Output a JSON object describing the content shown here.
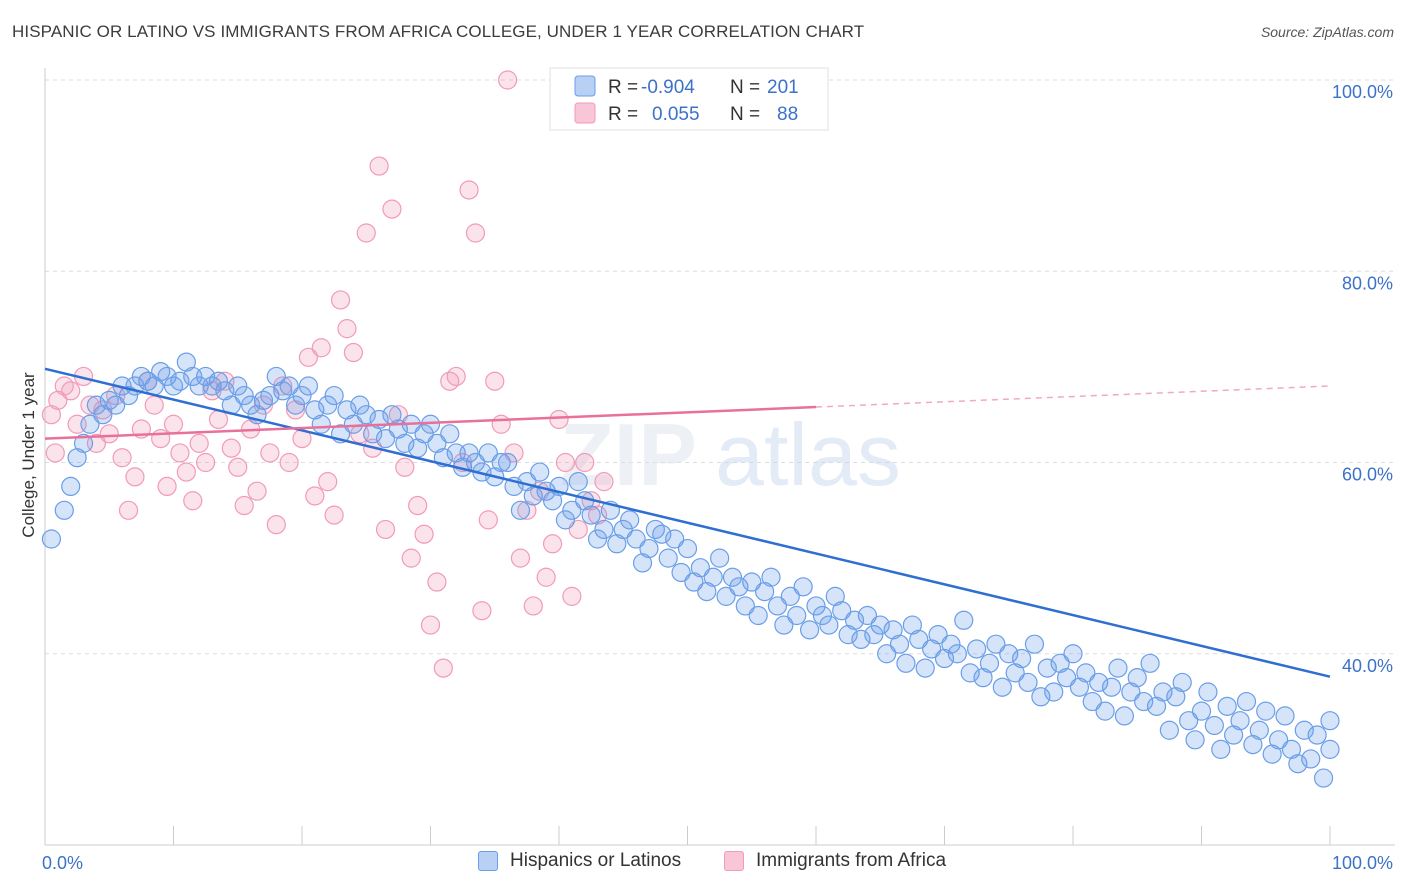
{
  "header": {
    "title": "HISPANIC OR LATINO VS IMMIGRANTS FROM AFRICA COLLEGE, UNDER 1 YEAR CORRELATION CHART",
    "source": "Source: ZipAtlas.com"
  },
  "watermark": {
    "part1": "ZIP",
    "part2": "atlas"
  },
  "chart_data": {
    "type": "scatter",
    "title": "HISPANIC OR LATINO VS IMMIGRANTS FROM AFRICA COLLEGE, UNDER 1 YEAR CORRELATION CHART",
    "xlabel": "",
    "ylabel": "College, Under 1 year",
    "xlim": [
      0,
      100
    ],
    "ylim": [
      20,
      100
    ],
    "x_tick_labels": [
      "0.0%",
      "100.0%"
    ],
    "y_ticks": [
      40,
      60,
      80,
      100
    ],
    "y_tick_labels": [
      "40.0%",
      "60.0%",
      "80.0%",
      "100.0%"
    ],
    "grid": true,
    "legend_position": "top-center",
    "colors": {
      "series1": "#6a9ee8",
      "series1_line": "#2f6fd1",
      "series2": "#f29ab8",
      "series2_line": "#e8709a"
    },
    "stats": [
      {
        "r_label": "R =",
        "r_value": "-0.904",
        "n_label": "N =",
        "n_value": "201"
      },
      {
        "r_label": "R =",
        "r_value": "0.055",
        "n_label": "N =",
        "n_value": "88"
      }
    ],
    "series": [
      {
        "name": "Hispanics or Latinos",
        "trend": {
          "x": [
            0,
            100
          ],
          "y": [
            69.8,
            37.6
          ]
        },
        "points": [
          [
            0.5,
            52
          ],
          [
            1.5,
            55
          ],
          [
            2,
            57.5
          ],
          [
            2.5,
            60.5
          ],
          [
            3,
            62
          ],
          [
            3.5,
            64
          ],
          [
            4,
            66
          ],
          [
            4.5,
            65
          ],
          [
            5,
            66.5
          ],
          [
            5.5,
            66
          ],
          [
            6,
            68
          ],
          [
            6.5,
            67
          ],
          [
            7,
            68
          ],
          [
            7.5,
            69
          ],
          [
            8,
            68.5
          ],
          [
            8.5,
            68
          ],
          [
            9,
            69.5
          ],
          [
            9.5,
            69
          ],
          [
            10,
            68
          ],
          [
            10.5,
            68.5
          ],
          [
            11,
            70.5
          ],
          [
            11.5,
            69
          ],
          [
            12,
            68
          ],
          [
            12.5,
            69
          ],
          [
            13,
            68
          ],
          [
            13.5,
            68.5
          ],
          [
            14,
            67.5
          ],
          [
            14.5,
            66
          ],
          [
            15,
            68
          ],
          [
            15.5,
            67
          ],
          [
            16,
            66
          ],
          [
            16.5,
            65
          ],
          [
            17,
            66.5
          ],
          [
            17.5,
            67
          ],
          [
            18,
            69
          ],
          [
            18.5,
            67.5
          ],
          [
            19,
            68
          ],
          [
            19.5,
            66
          ],
          [
            20,
            67
          ],
          [
            20.5,
            68
          ],
          [
            21,
            65.5
          ],
          [
            21.5,
            64
          ],
          [
            22,
            66
          ],
          [
            22.5,
            67
          ],
          [
            23,
            63
          ],
          [
            23.5,
            65.5
          ],
          [
            24,
            64
          ],
          [
            24.5,
            66
          ],
          [
            25,
            65
          ],
          [
            25.5,
            63
          ],
          [
            26,
            64.5
          ],
          [
            26.5,
            62.5
          ],
          [
            27,
            65
          ],
          [
            27.5,
            63.5
          ],
          [
            28,
            62
          ],
          [
            28.5,
            64
          ],
          [
            29,
            61.5
          ],
          [
            29.5,
            63
          ],
          [
            30,
            64
          ],
          [
            30.5,
            62
          ],
          [
            31,
            60.5
          ],
          [
            31.5,
            63
          ],
          [
            32,
            61
          ],
          [
            32.5,
            59.5
          ],
          [
            33,
            61
          ],
          [
            33.5,
            60
          ],
          [
            34,
            59
          ],
          [
            34.5,
            61
          ],
          [
            35,
            58.5
          ],
          [
            35.5,
            60
          ],
          [
            36,
            60
          ],
          [
            36.5,
            57.5
          ],
          [
            37,
            55
          ],
          [
            37.5,
            58
          ],
          [
            38,
            56.5
          ],
          [
            38.5,
            59
          ],
          [
            39,
            57
          ],
          [
            39.5,
            56
          ],
          [
            40,
            57.5
          ],
          [
            40.5,
            54
          ],
          [
            41,
            55
          ],
          [
            41.5,
            58
          ],
          [
            42,
            56
          ],
          [
            42.5,
            54.5
          ],
          [
            43,
            52
          ],
          [
            43.5,
            53
          ],
          [
            44,
            55
          ],
          [
            44.5,
            51.5
          ],
          [
            45,
            53
          ],
          [
            45.5,
            54
          ],
          [
            46,
            52
          ],
          [
            46.5,
            49.5
          ],
          [
            47,
            51
          ],
          [
            47.5,
            53
          ],
          [
            48,
            52.5
          ],
          [
            48.5,
            50
          ],
          [
            49,
            52
          ],
          [
            49.5,
            48.5
          ],
          [
            50,
            51
          ],
          [
            50.5,
            47.5
          ],
          [
            51,
            49
          ],
          [
            51.5,
            46.5
          ],
          [
            52,
            48
          ],
          [
            52.5,
            50
          ],
          [
            53,
            46
          ],
          [
            53.5,
            48
          ],
          [
            54,
            47
          ],
          [
            54.5,
            45
          ],
          [
            55,
            47.5
          ],
          [
            55.5,
            44
          ],
          [
            56,
            46.5
          ],
          [
            56.5,
            48
          ],
          [
            57,
            45
          ],
          [
            57.5,
            43
          ],
          [
            58,
            46
          ],
          [
            58.5,
            44
          ],
          [
            59,
            47
          ],
          [
            59.5,
            42.5
          ],
          [
            60,
            45
          ],
          [
            60.5,
            44
          ],
          [
            61,
            43
          ],
          [
            61.5,
            46
          ],
          [
            62,
            44.5
          ],
          [
            62.5,
            42
          ],
          [
            63,
            43.5
          ],
          [
            63.5,
            41.5
          ],
          [
            64,
            44
          ],
          [
            64.5,
            42
          ],
          [
            65,
            43
          ],
          [
            65.5,
            40
          ],
          [
            66,
            42.5
          ],
          [
            66.5,
            41
          ],
          [
            67,
            39
          ],
          [
            67.5,
            43
          ],
          [
            68,
            41.5
          ],
          [
            68.5,
            38.5
          ],
          [
            69,
            40.5
          ],
          [
            69.5,
            42
          ],
          [
            70,
            39.5
          ],
          [
            70.5,
            41
          ],
          [
            71,
            40
          ],
          [
            71.5,
            43.5
          ],
          [
            72,
            38
          ],
          [
            72.5,
            40.5
          ],
          [
            73,
            37.5
          ],
          [
            73.5,
            39
          ],
          [
            74,
            41
          ],
          [
            74.5,
            36.5
          ],
          [
            75,
            40
          ],
          [
            75.5,
            38
          ],
          [
            76,
            39.5
          ],
          [
            76.5,
            37
          ],
          [
            77,
            41
          ],
          [
            77.5,
            35.5
          ],
          [
            78,
            38.5
          ],
          [
            78.5,
            36
          ],
          [
            79,
            39
          ],
          [
            79.5,
            37.5
          ],
          [
            80,
            40
          ],
          [
            80.5,
            36.5
          ],
          [
            81,
            38
          ],
          [
            81.5,
            35
          ],
          [
            82,
            37
          ],
          [
            82.5,
            34
          ],
          [
            83,
            36.5
          ],
          [
            83.5,
            38.5
          ],
          [
            84,
            33.5
          ],
          [
            84.5,
            36
          ],
          [
            85,
            37.5
          ],
          [
            85.5,
            35
          ],
          [
            86,
            39
          ],
          [
            86.5,
            34.5
          ],
          [
            87,
            36
          ],
          [
            87.5,
            32
          ],
          [
            88,
            35.5
          ],
          [
            88.5,
            37
          ],
          [
            89,
            33
          ],
          [
            89.5,
            31
          ],
          [
            90,
            34
          ],
          [
            90.5,
            36
          ],
          [
            91,
            32.5
          ],
          [
            91.5,
            30
          ],
          [
            92,
            34.5
          ],
          [
            92.5,
            31.5
          ],
          [
            93,
            33
          ],
          [
            93.5,
            35
          ],
          [
            94,
            30.5
          ],
          [
            94.5,
            32
          ],
          [
            95,
            34
          ],
          [
            95.5,
            29.5
          ],
          [
            96,
            31
          ],
          [
            96.5,
            33.5
          ],
          [
            97,
            30
          ],
          [
            97.5,
            28.5
          ],
          [
            98,
            32
          ],
          [
            98.5,
            29
          ],
          [
            99,
            31.5
          ],
          [
            99.5,
            27
          ],
          [
            100,
            30
          ],
          [
            100,
            33
          ]
        ]
      },
      {
        "name": "Immigrants from Africa",
        "trend": {
          "x": [
            0,
            60
          ],
          "y": [
            62.5,
            65.8
          ]
        },
        "trend_extension": {
          "x": [
            60,
            100
          ],
          "y": [
            65.8,
            68.0
          ]
        },
        "points": [
          [
            0.5,
            65
          ],
          [
            0.8,
            61
          ],
          [
            1,
            66.5
          ],
          [
            1.5,
            68
          ],
          [
            2,
            67.5
          ],
          [
            2.5,
            64
          ],
          [
            3,
            69
          ],
          [
            3.5,
            66
          ],
          [
            4,
            62
          ],
          [
            4.5,
            65.5
          ],
          [
            5,
            63
          ],
          [
            5.5,
            67
          ],
          [
            6,
            60.5
          ],
          [
            6.5,
            55
          ],
          [
            7,
            58.5
          ],
          [
            7.5,
            63.5
          ],
          [
            8,
            68.5
          ],
          [
            8.5,
            66
          ],
          [
            9,
            62.5
          ],
          [
            9.5,
            57.5
          ],
          [
            10,
            64
          ],
          [
            10.5,
            61
          ],
          [
            11,
            59
          ],
          [
            11.5,
            56
          ],
          [
            12,
            62
          ],
          [
            12.5,
            60
          ],
          [
            13,
            67.5
          ],
          [
            13.5,
            64.5
          ],
          [
            14,
            68.5
          ],
          [
            14.5,
            61.5
          ],
          [
            15,
            59.5
          ],
          [
            15.5,
            55.5
          ],
          [
            16,
            63.5
          ],
          [
            16.5,
            57
          ],
          [
            17,
            66
          ],
          [
            17.5,
            61
          ],
          [
            18,
            53.5
          ],
          [
            18.5,
            68
          ],
          [
            19,
            60
          ],
          [
            19.5,
            65.5
          ],
          [
            20,
            62.5
          ],
          [
            20.5,
            71
          ],
          [
            21,
            56.5
          ],
          [
            21.5,
            72
          ],
          [
            22,
            58
          ],
          [
            22.5,
            54.5
          ],
          [
            23,
            77
          ],
          [
            23.5,
            74
          ],
          [
            24,
            71.5
          ],
          [
            24.5,
            63
          ],
          [
            25,
            84
          ],
          [
            25.5,
            61.5
          ],
          [
            26,
            91
          ],
          [
            26.5,
            53
          ],
          [
            27,
            86.5
          ],
          [
            27.5,
            65
          ],
          [
            28,
            59.5
          ],
          [
            28.5,
            50
          ],
          [
            29,
            55.5
          ],
          [
            29.5,
            52.5
          ],
          [
            30,
            43
          ],
          [
            30.5,
            47.5
          ],
          [
            31,
            38.5
          ],
          [
            31.5,
            68.5
          ],
          [
            32,
            69
          ],
          [
            32.5,
            60
          ],
          [
            33,
            88.5
          ],
          [
            33.5,
            84
          ],
          [
            34,
            44.5
          ],
          [
            34.5,
            54
          ],
          [
            35,
            68.5
          ],
          [
            35.5,
            64
          ],
          [
            36,
            100
          ],
          [
            36.5,
            61
          ],
          [
            37,
            50
          ],
          [
            37.5,
            55
          ],
          [
            38,
            45
          ],
          [
            38.5,
            57
          ],
          [
            39,
            48
          ],
          [
            39.5,
            51.5
          ],
          [
            40,
            64.5
          ],
          [
            40.5,
            60
          ],
          [
            41,
            46
          ],
          [
            41.5,
            53
          ],
          [
            42,
            60
          ],
          [
            42.5,
            56
          ],
          [
            43,
            54.5
          ],
          [
            43.5,
            58
          ]
        ]
      }
    ]
  }
}
